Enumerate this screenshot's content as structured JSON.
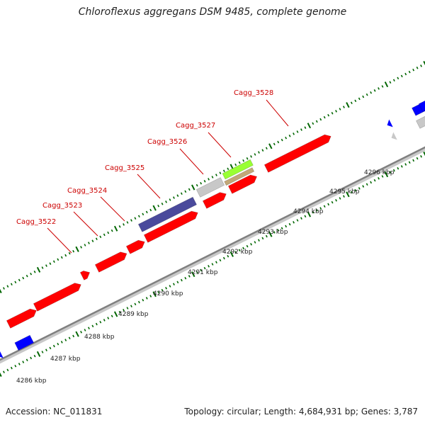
{
  "title": "Chloroflexus aggregans DSM 9485, complete genome",
  "footer": {
    "accession": "Accession: NC_011831",
    "summary": "Topology: circular; Length: 4,684,931 bp; Genes: 3,787"
  },
  "colors": {
    "cds": "#ff0000",
    "rna": "#c8c8c8",
    "blue": "#0000ff",
    "purple": "#4a4a9c",
    "lime": "#99ff33",
    "tan": "#c2a878",
    "backbone": "#808080",
    "ticks": "#006600",
    "label": "#cc0000"
  },
  "scale_labels": [
    "4286 kbp",
    "4287 kbp",
    "4288 kbp",
    "4289 kbp",
    "4290 kbp",
    "4291 kbp",
    "4292 kbp",
    "4293 kbp",
    "4294 kbp",
    "4295 kbp",
    "4296 kbp"
  ],
  "gene_labels": [
    "Cagg_3522",
    "Cagg_3523",
    "Cagg_3524",
    "Cagg_3525",
    "Cagg_3526",
    "Cagg_3527",
    "Cagg_3528"
  ]
}
